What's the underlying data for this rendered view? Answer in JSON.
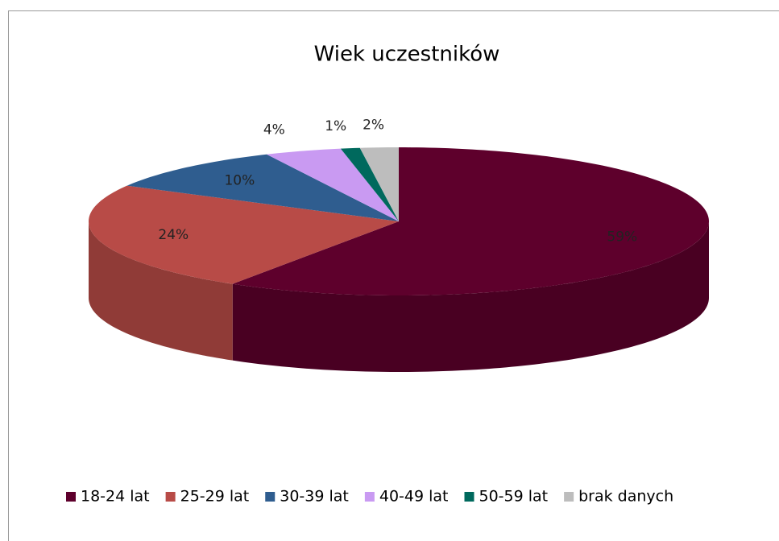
{
  "chart_data": {
    "type": "pie3d",
    "title": "Wiek uczestników",
    "categories": [
      "18-24 lat",
      "25-29 lat",
      "30-39 lat",
      "40-49 lat",
      "50-59 lat",
      "brak danych"
    ],
    "values": [
      59,
      24,
      10,
      4,
      1,
      2
    ],
    "value_labels": [
      "59%",
      "24%",
      "10%",
      "4%",
      "1%",
      "2%"
    ],
    "colors": [
      "#5e002c",
      "#b84b47",
      "#2f5d8f",
      "#c99af2",
      "#00695d",
      "#bdbdbd"
    ],
    "legend": "bottom"
  }
}
